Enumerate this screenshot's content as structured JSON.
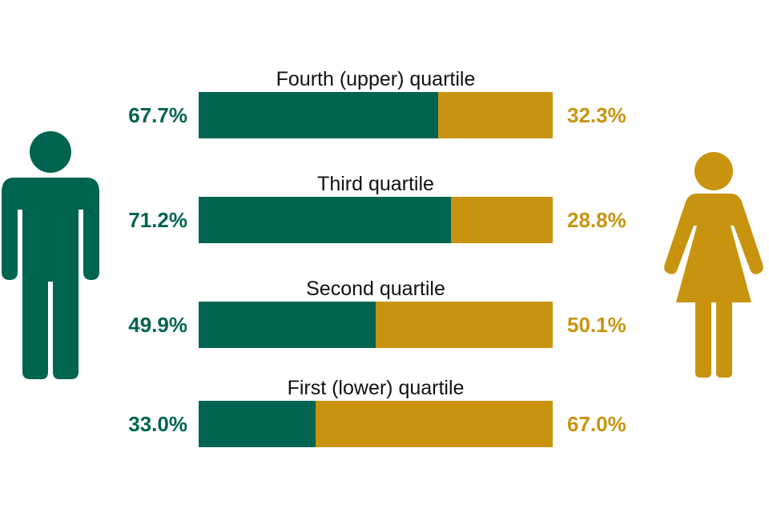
{
  "colors": {
    "male": "#006450",
    "female": "#c89410"
  },
  "icons": {
    "left": "man-icon",
    "right": "woman-icon"
  },
  "chart_data": {
    "type": "bar",
    "orientation": "horizontal",
    "stacked": true,
    "normalized": true,
    "categories": [
      "Fourth (upper) quartile",
      "Third quartile",
      "Second quartile",
      "First (lower) quartile"
    ],
    "series": [
      {
        "values": [
          67.7,
          71.2,
          49.9,
          33.0
        ],
        "labels": [
          "67.7%",
          "71.2%",
          "49.9%",
          "33.0%"
        ],
        "color": "#006450"
      },
      {
        "values": [
          32.3,
          28.8,
          50.1,
          67.0
        ],
        "labels": [
          "32.3%",
          "28.8%",
          "50.1%",
          "67.0%"
        ],
        "color": "#c89410"
      }
    ],
    "xlim": [
      0,
      100
    ],
    "grid": false,
    "legend": "icons"
  }
}
